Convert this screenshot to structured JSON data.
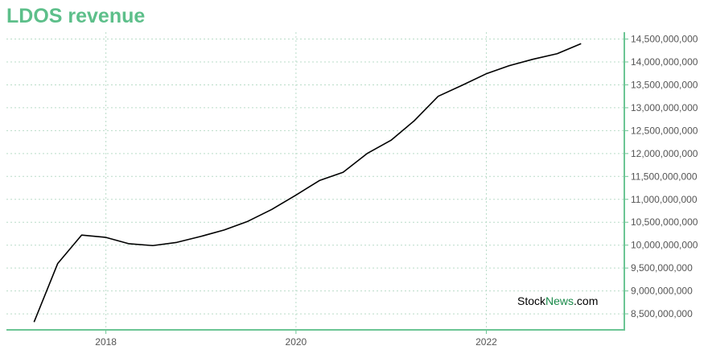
{
  "chart_data": {
    "type": "line",
    "title": "LDOS revenue",
    "xlabel": "",
    "ylabel": "",
    "grid": true,
    "legend": "none",
    "y_axis_side": "right",
    "ylim": [
      8150000000,
      14650000000
    ],
    "xlim": [
      "2016-12-15",
      "2023-06-15"
    ],
    "x_ticks": [
      {
        "label": "2018",
        "date": "2018-01-01"
      },
      {
        "label": "2020",
        "date": "2020-01-01"
      },
      {
        "label": "2022",
        "date": "2022-01-01"
      }
    ],
    "y_ticks": [
      {
        "value": 8500000000,
        "label": "8,500,000,000"
      },
      {
        "value": 9000000000,
        "label": "9,000,000,000"
      },
      {
        "value": 9500000000,
        "label": "9,500,000,000"
      },
      {
        "value": 10000000000,
        "label": "10,000,000,000"
      },
      {
        "value": 10500000000,
        "label": "10,500,000,000"
      },
      {
        "value": 11000000000,
        "label": "11,000,000,000"
      },
      {
        "value": 11500000000,
        "label": "11,500,000,000"
      },
      {
        "value": 12000000000,
        "label": "12,000,000,000"
      },
      {
        "value": 12500000000,
        "label": "12,500,000,000"
      },
      {
        "value": 13000000000,
        "label": "13,000,000,000"
      },
      {
        "value": 13500000000,
        "label": "13,500,000,000"
      },
      {
        "value": 14000000000,
        "label": "14,000,000,000"
      },
      {
        "value": 14500000000,
        "label": "14,500,000,000"
      }
    ],
    "series": [
      {
        "color": "#000000",
        "points": [
          {
            "x": "2017-03-31",
            "y": 8320000000
          },
          {
            "x": "2017-06-30",
            "y": 9600000000
          },
          {
            "x": "2017-09-30",
            "y": 10220000000
          },
          {
            "x": "2017-12-31",
            "y": 10170000000
          },
          {
            "x": "2018-03-31",
            "y": 10030000000
          },
          {
            "x": "2018-06-30",
            "y": 9990000000
          },
          {
            "x": "2018-09-30",
            "y": 10060000000
          },
          {
            "x": "2018-12-31",
            "y": 10190000000
          },
          {
            "x": "2019-03-31",
            "y": 10330000000
          },
          {
            "x": "2019-06-30",
            "y": 10520000000
          },
          {
            "x": "2019-09-30",
            "y": 10780000000
          },
          {
            "x": "2019-12-31",
            "y": 11090000000
          },
          {
            "x": "2020-03-31",
            "y": 11410000000
          },
          {
            "x": "2020-06-30",
            "y": 11590000000
          },
          {
            "x": "2020-09-30",
            "y": 12000000000
          },
          {
            "x": "2020-12-31",
            "y": 12290000000
          },
          {
            "x": "2021-03-31",
            "y": 12720000000
          },
          {
            "x": "2021-06-30",
            "y": 13250000000
          },
          {
            "x": "2021-09-30",
            "y": 13490000000
          },
          {
            "x": "2021-12-31",
            "y": 13740000000
          },
          {
            "x": "2022-03-31",
            "y": 13920000000
          },
          {
            "x": "2022-06-30",
            "y": 14060000000
          },
          {
            "x": "2022-09-30",
            "y": 14180000000
          },
          {
            "x": "2022-12-31",
            "y": 14400000000
          }
        ]
      }
    ]
  },
  "watermark": {
    "part1": "Stock",
    "part2": "News",
    "part3": ".com"
  },
  "colors": {
    "title": "#5dbf8a",
    "axis": "#6cc594",
    "grid": "#b9dcc8",
    "watermark_dark": "#000000",
    "watermark_green": "#1a8a4a"
  }
}
